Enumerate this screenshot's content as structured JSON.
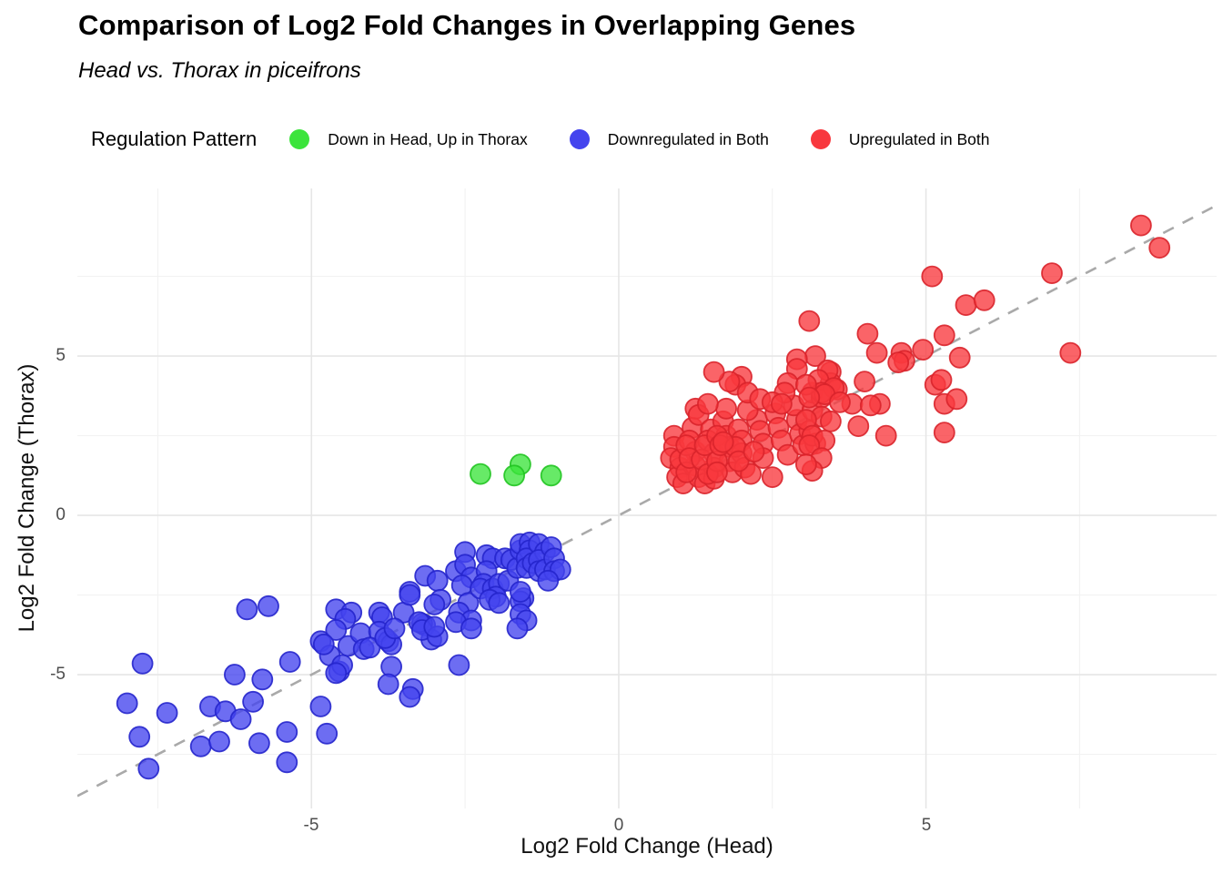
{
  "header": {
    "title": "Comparison of Log2 Fold Changes in Overlapping Genes",
    "subtitle": "Head vs. Thorax in piceifrons"
  },
  "legend": {
    "title": "Regulation Pattern",
    "items": [
      {
        "label": "Down in Head, Up in Thorax",
        "color": "#3ce43c"
      },
      {
        "label": "Downregulated in Both",
        "color": "#4444ee"
      },
      {
        "label": "Upregulated in Both",
        "color": "#f8383e"
      }
    ]
  },
  "axes": {
    "x_title": "Log2 Fold Change (Head)",
    "y_title": "Log2 Fold Change (Thorax)",
    "x_tick_labels": [
      "-5",
      "0",
      "5"
    ],
    "y_tick_labels": [
      "5",
      "0",
      "-5"
    ]
  },
  "chart_data": {
    "type": "scatter",
    "title": "Comparison of Log2 Fold Changes in Overlapping Genes",
    "subtitle": "Head vs. Thorax in piceifrons",
    "xlabel": "Log2 Fold Change (Head)",
    "ylabel": "Log2 Fold Change (Thorax)",
    "xlim": [
      -8.81,
      9.73
    ],
    "ylim": [
      -9.2,
      10.26
    ],
    "x_major_ticks": [
      -5,
      0,
      5
    ],
    "y_major_ticks": [
      -5,
      0,
      5
    ],
    "x_minor_ticks": [
      -7.5,
      -2.5,
      2.5,
      7.5
    ],
    "y_minor_ticks": [
      -7.5,
      -2.5,
      2.5,
      7.5
    ],
    "grid": true,
    "legend_position": "top",
    "reference_line": {
      "type": "identity y=x",
      "style": "dashed",
      "color": "#a9a9a9"
    },
    "point_style": {
      "radius_px": 11,
      "fill_opacity": 0.78,
      "stroke_opacity": 0.9
    },
    "major_grid_color": "#e6e6e6",
    "minor_grid_color": "#f2f2f2",
    "series": [
      {
        "name": "Down in Head, Up in Thorax",
        "color": "#3ce43c",
        "stroke": "#21c421",
        "points": [
          [
            -2.25,
            1.3
          ],
          [
            -1.6,
            1.6
          ],
          [
            -1.7,
            1.25
          ],
          [
            -1.1,
            1.25
          ]
        ]
      },
      {
        "name": "Downregulated in Both",
        "color": "#4444ee",
        "stroke": "#2525cc",
        "points": [
          [
            -7.75,
            -4.65
          ],
          [
            -8.0,
            -5.9
          ],
          [
            -7.8,
            -6.95
          ],
          [
            -7.65,
            -7.95
          ],
          [
            -7.35,
            -6.2
          ],
          [
            -6.25,
            -5.0
          ],
          [
            -5.8,
            -5.15
          ],
          [
            -5.35,
            -4.6
          ],
          [
            -6.65,
            -6.0
          ],
          [
            -6.4,
            -6.15
          ],
          [
            -6.15,
            -6.4
          ],
          [
            -5.95,
            -5.85
          ],
          [
            -6.8,
            -7.25
          ],
          [
            -6.5,
            -7.1
          ],
          [
            -5.85,
            -7.15
          ],
          [
            -5.4,
            -6.8
          ],
          [
            -5.4,
            -7.75
          ],
          [
            -4.85,
            -3.95
          ],
          [
            -4.7,
            -4.4
          ],
          [
            -4.85,
            -6.0
          ],
          [
            -4.75,
            -6.85
          ],
          [
            -6.05,
            -2.95
          ],
          [
            -5.7,
            -2.85
          ],
          [
            -4.6,
            -2.95
          ],
          [
            -4.35,
            -3.05
          ],
          [
            -4.45,
            -3.25
          ],
          [
            -4.6,
            -3.6
          ],
          [
            -4.8,
            -4.05
          ],
          [
            -4.55,
            -4.9
          ],
          [
            -4.4,
            -4.1
          ],
          [
            -4.2,
            -3.7
          ],
          [
            -4.15,
            -4.2
          ],
          [
            -3.9,
            -3.05
          ],
          [
            -3.85,
            -3.2
          ],
          [
            -3.9,
            -3.65
          ],
          [
            -3.75,
            -3.95
          ],
          [
            -3.5,
            -3.05
          ],
          [
            -3.4,
            -2.4
          ],
          [
            -3.15,
            -1.9
          ],
          [
            -3.15,
            -3.45
          ],
          [
            -3.2,
            -3.4
          ],
          [
            -3.05,
            -3.9
          ],
          [
            -3.7,
            -4.75
          ],
          [
            -3.75,
            -5.3
          ],
          [
            -3.35,
            -5.45
          ],
          [
            -3.4,
            -2.5
          ],
          [
            -2.95,
            -2.05
          ],
          [
            -2.9,
            -2.65
          ],
          [
            -3.0,
            -2.8
          ],
          [
            -2.65,
            -1.75
          ],
          [
            -2.5,
            -1.15
          ],
          [
            -2.5,
            -1.55
          ],
          [
            -2.4,
            -1.95
          ],
          [
            -2.55,
            -2.2
          ],
          [
            -2.45,
            -2.75
          ],
          [
            -2.6,
            -3.05
          ],
          [
            -2.4,
            -3.3
          ],
          [
            -2.65,
            -3.35
          ],
          [
            -2.15,
            -1.25
          ],
          [
            -2.05,
            -1.35
          ],
          [
            -2.15,
            -1.75
          ],
          [
            -2.2,
            -2.15
          ],
          [
            -2.25,
            -2.3
          ],
          [
            -2.05,
            -2.3
          ],
          [
            -1.95,
            -2.15
          ],
          [
            -2.0,
            -2.55
          ],
          [
            -2.1,
            -2.65
          ],
          [
            -1.95,
            -2.75
          ],
          [
            -1.8,
            -2.05
          ],
          [
            -1.85,
            -1.35
          ],
          [
            -1.75,
            -1.4
          ],
          [
            -1.65,
            -1.65
          ],
          [
            -1.6,
            -1.1
          ],
          [
            -1.6,
            -0.9
          ],
          [
            -1.45,
            -0.85
          ],
          [
            -1.45,
            -1.1
          ],
          [
            -1.5,
            -1.35
          ],
          [
            -1.5,
            -1.65
          ],
          [
            -1.4,
            -1.5
          ],
          [
            -1.3,
            -0.9
          ],
          [
            -1.2,
            -1.15
          ],
          [
            -1.3,
            -1.4
          ],
          [
            -1.3,
            -1.75
          ],
          [
            -1.2,
            -1.7
          ],
          [
            -1.1,
            -1.0
          ],
          [
            -1.05,
            -1.35
          ],
          [
            -1.05,
            -1.75
          ],
          [
            -0.95,
            -1.7
          ],
          [
            -1.15,
            -2.05
          ],
          [
            -1.55,
            -2.6
          ],
          [
            -1.6,
            -2.7
          ],
          [
            -1.6,
            -3.1
          ],
          [
            -1.5,
            -3.3
          ],
          [
            -1.6,
            -2.4
          ],
          [
            -1.65,
            -3.55
          ],
          [
            -3.25,
            -3.35
          ],
          [
            -3.2,
            -3.6
          ],
          [
            -2.95,
            -3.8
          ],
          [
            -4.05,
            -4.15
          ],
          [
            -4.5,
            -4.7
          ],
          [
            -4.6,
            -4.95
          ],
          [
            -3.7,
            -4.05
          ],
          [
            -3.8,
            -3.85
          ],
          [
            -3.65,
            -3.55
          ],
          [
            -3.4,
            -5.7
          ],
          [
            -3.0,
            -3.5
          ],
          [
            -2.6,
            -4.7
          ],
          [
            -2.4,
            -3.55
          ]
        ]
      },
      {
        "name": "Upregulated in Both",
        "color": "#f8383e",
        "stroke": "#d9242b",
        "points": [
          [
            0.9,
            2.5
          ],
          [
            0.9,
            2.15
          ],
          [
            0.85,
            1.8
          ],
          [
            1.0,
            1.5
          ],
          [
            0.95,
            1.2
          ],
          [
            1.05,
            1.0
          ],
          [
            1.2,
            2.75
          ],
          [
            1.25,
            3.35
          ],
          [
            1.3,
            3.15
          ],
          [
            1.15,
            2.35
          ],
          [
            1.25,
            2.0
          ],
          [
            1.25,
            1.55
          ],
          [
            1.3,
            1.2
          ],
          [
            1.4,
            1.0
          ],
          [
            1.5,
            2.7
          ],
          [
            1.45,
            2.35
          ],
          [
            1.55,
            1.95
          ],
          [
            1.55,
            1.5
          ],
          [
            1.55,
            1.15
          ],
          [
            1.7,
            2.95
          ],
          [
            1.75,
            3.35
          ],
          [
            1.75,
            2.5
          ],
          [
            1.8,
            2.15
          ],
          [
            1.8,
            1.7
          ],
          [
            1.85,
            1.35
          ],
          [
            1.95,
            2.7
          ],
          [
            2.0,
            2.35
          ],
          [
            2.0,
            1.95
          ],
          [
            2.05,
            1.5
          ],
          [
            2.15,
            1.3
          ],
          [
            2.25,
            3.0
          ],
          [
            2.3,
            2.65
          ],
          [
            2.35,
            2.25
          ],
          [
            2.35,
            1.8
          ],
          [
            2.1,
            3.3
          ],
          [
            2.55,
            3.2
          ],
          [
            2.6,
            2.75
          ],
          [
            2.65,
            2.35
          ],
          [
            2.75,
            1.9
          ],
          [
            2.5,
            1.2
          ],
          [
            2.9,
            3.0
          ],
          [
            2.95,
            2.55
          ],
          [
            3.0,
            2.2
          ],
          [
            3.1,
            2.65
          ],
          [
            3.2,
            2.25
          ],
          [
            2.85,
            3.45
          ],
          [
            3.15,
            3.3
          ],
          [
            1.0,
            1.75
          ],
          [
            1.1,
            2.2
          ],
          [
            1.1,
            1.35
          ],
          [
            1.15,
            1.8
          ],
          [
            1.35,
            1.75
          ],
          [
            1.4,
            2.2
          ],
          [
            1.45,
            1.3
          ],
          [
            1.6,
            2.5
          ],
          [
            1.6,
            1.7
          ],
          [
            1.65,
            2.2
          ],
          [
            1.9,
            2.15
          ],
          [
            1.95,
            1.7
          ],
          [
            2.2,
            2.0
          ],
          [
            1.6,
            1.35
          ],
          [
            1.7,
            2.3
          ],
          [
            3.1,
            6.1
          ],
          [
            4.05,
            5.7
          ],
          [
            3.2,
            5.0
          ],
          [
            4.2,
            5.1
          ],
          [
            4.6,
            5.1
          ],
          [
            4.65,
            4.85
          ],
          [
            2.9,
            4.9
          ],
          [
            2.9,
            4.6
          ],
          [
            3.45,
            4.5
          ],
          [
            3.45,
            4.15
          ],
          [
            3.55,
            3.95
          ],
          [
            4.0,
            4.2
          ],
          [
            3.15,
            3.85
          ],
          [
            3.3,
            3.7
          ],
          [
            2.75,
            4.15
          ],
          [
            2.7,
            3.85
          ],
          [
            2.0,
            4.35
          ],
          [
            1.9,
            4.1
          ],
          [
            1.8,
            4.2
          ],
          [
            1.55,
            4.5
          ],
          [
            2.1,
            3.85
          ],
          [
            2.3,
            3.65
          ],
          [
            2.5,
            3.55
          ],
          [
            2.65,
            3.5
          ],
          [
            1.45,
            3.5
          ],
          [
            3.8,
            3.5
          ],
          [
            4.25,
            3.5
          ],
          [
            3.4,
            4.55
          ],
          [
            3.25,
            4.25
          ],
          [
            3.5,
            4.0
          ],
          [
            3.3,
            3.85
          ],
          [
            3.05,
            4.1
          ],
          [
            3.35,
            3.8
          ],
          [
            3.1,
            3.7
          ],
          [
            4.1,
            3.45
          ],
          [
            3.6,
            3.55
          ],
          [
            3.3,
            3.1
          ],
          [
            3.05,
            3.0
          ],
          [
            3.45,
            2.95
          ],
          [
            3.9,
            2.8
          ],
          [
            3.15,
            2.5
          ],
          [
            3.35,
            2.35
          ],
          [
            3.1,
            2.2
          ],
          [
            3.3,
            1.8
          ],
          [
            5.15,
            4.1
          ],
          [
            5.3,
            3.5
          ],
          [
            5.5,
            3.65
          ],
          [
            3.15,
            1.4
          ],
          [
            3.05,
            1.6
          ],
          [
            4.35,
            2.5
          ],
          [
            5.3,
            2.6
          ],
          [
            5.1,
            7.5
          ],
          [
            7.05,
            7.6
          ],
          [
            5.65,
            6.6
          ],
          [
            5.95,
            6.75
          ],
          [
            5.3,
            5.65
          ],
          [
            4.95,
            5.2
          ],
          [
            4.55,
            4.8
          ],
          [
            5.55,
            4.95
          ],
          [
            7.35,
            5.1
          ],
          [
            5.25,
            4.25
          ],
          [
            8.5,
            9.1
          ],
          [
            8.8,
            8.4
          ]
        ]
      }
    ]
  }
}
